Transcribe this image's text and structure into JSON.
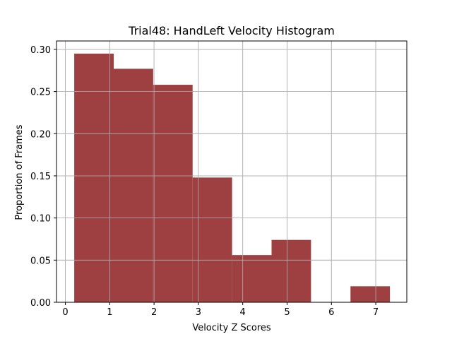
{
  "chart_data": {
    "type": "bar",
    "title": "Trial48: HandLeft Velocity Histogram",
    "xlabel": "Velocity Z Scores",
    "ylabel": "Proportion of Frames",
    "xlim": [
      -0.2,
      7.7
    ],
    "ylim": [
      0,
      0.31
    ],
    "xticks": [
      0,
      1,
      2,
      3,
      4,
      5,
      6,
      7
    ],
    "xtick_labels": [
      "0",
      "1",
      "2",
      "3",
      "4",
      "5",
      "6",
      "7"
    ],
    "yticks": [
      0.0,
      0.05,
      0.1,
      0.15,
      0.2,
      0.25,
      0.3
    ],
    "ytick_labels": [
      "0.00",
      "0.05",
      "0.10",
      "0.15",
      "0.20",
      "0.25",
      "0.30"
    ],
    "grid": true,
    "bar_color": "#9e4041",
    "bins": [
      {
        "x0": 0.2,
        "x1": 1.09,
        "value": 0.295
      },
      {
        "x0": 1.09,
        "x1": 1.98,
        "value": 0.277
      },
      {
        "x0": 1.98,
        "x1": 2.87,
        "value": 0.258
      },
      {
        "x0": 2.87,
        "x1": 3.76,
        "value": 0.148
      },
      {
        "x0": 3.76,
        "x1": 4.65,
        "value": 0.056
      },
      {
        "x0": 4.65,
        "x1": 5.54,
        "value": 0.074
      },
      {
        "x0": 5.54,
        "x1": 6.43,
        "value": 0.0
      },
      {
        "x0": 6.43,
        "x1": 7.32,
        "value": 0.019
      }
    ]
  }
}
